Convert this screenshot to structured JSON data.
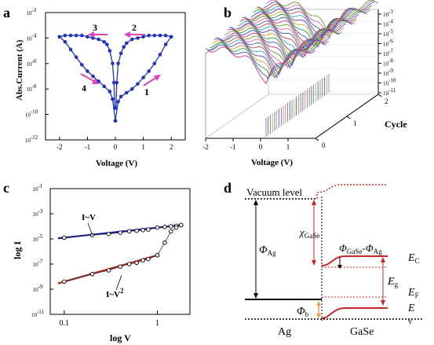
{
  "panels": {
    "a": {
      "letter": "a",
      "ylabel": "Abs.Current (A)",
      "xlabel": "Voltage (V)",
      "xticks": [
        "-2",
        "-1",
        "0",
        "1",
        "2"
      ],
      "yticks": [
        "10-2",
        "10-4",
        "10-6",
        "10-8",
        "10-10",
        "10-12"
      ],
      "sweep_labels": [
        "3",
        "2",
        "4",
        "1"
      ]
    },
    "b": {
      "letter": "b",
      "ylabel": "Abs.Current (A)",
      "xlabel": "Voltage (V)",
      "depth_label": "Cycle",
      "xticks": [
        "-2",
        "-1",
        "0",
        "1"
      ],
      "depth_ticks": [
        "0",
        "1",
        "2"
      ],
      "zticks": [
        "10-3",
        "10-4",
        "10-5",
        "10-6",
        "10-7",
        "10-8",
        "10-9",
        "10-10",
        "10-11"
      ]
    },
    "c": {
      "letter": "c",
      "ylabel": "log I",
      "xlabel": "log V",
      "xticks": [
        "0.1",
        "1"
      ],
      "yticks": [
        "10-1",
        "10-3",
        "10-5",
        "10-7",
        "10-9",
        "10-11"
      ],
      "fit_labels": [
        "I~V",
        "I~V2"
      ]
    },
    "d": {
      "letter": "d",
      "labels": {
        "vacuum": "Vacuum level",
        "phi_ag": "ΦAg",
        "chi": "χGaSe",
        "phi_diff": "ΦGaSe-ΦAg",
        "ec": "EC",
        "eg": "Eg",
        "ef": "EF",
        "ev": "E",
        "v": "v",
        "phi_b": "Φb",
        "ag": "Ag",
        "gase": "GaSe"
      }
    }
  },
  "chart_data": [
    {
      "panel": "a",
      "type": "line",
      "xlabel": "Voltage (V)",
      "ylabel": "Abs.Current (A)",
      "xlim": [
        -2.5,
        2.5
      ],
      "ylim_log10": [
        -12,
        -2
      ],
      "series": [
        {
          "x": [
            0,
            0.1,
            0.2,
            0.4,
            0.6,
            0.8,
            1.0,
            1.2,
            1.4,
            1.6,
            1.8,
            2.0
          ],
          "log10_y": [
            -10.5,
            -9.0,
            -8.6,
            -8.3,
            -8.0,
            -7.6,
            -7.1,
            -6.6,
            -6.0,
            -5.3,
            -4.5,
            -3.9
          ]
        },
        {
          "x": [
            2.0,
            1.8,
            1.6,
            1.4,
            1.2,
            1.0,
            0.8,
            0.6,
            0.4,
            0.3,
            0.2,
            0.1,
            0.05,
            0.02
          ],
          "log10_y": [
            -3.9,
            -3.8,
            -3.8,
            -3.8,
            -3.8,
            -3.9,
            -4.0,
            -4.1,
            -4.4,
            -4.7,
            -5.2,
            -6.0,
            -7.5,
            -9.5
          ]
        },
        {
          "x": [
            -0.02,
            -0.05,
            -0.1,
            -0.2,
            -0.3,
            -0.4,
            -0.6,
            -0.8,
            -1.0,
            -1.2,
            -1.4,
            -1.6,
            -1.8,
            -2.0
          ],
          "log10_y": [
            -9.5,
            -7.5,
            -6.0,
            -5.0,
            -4.5,
            -4.3,
            -4.1,
            -4.0,
            -3.9,
            -3.8,
            -3.8,
            -3.8,
            -3.8,
            -3.9
          ]
        },
        {
          "x": [
            -2.0,
            -1.8,
            -1.6,
            -1.4,
            -1.2,
            -1.0,
            -0.8,
            -0.6,
            -0.4,
            -0.2,
            -0.1,
            0
          ],
          "log10_y": [
            -3.9,
            -4.3,
            -4.9,
            -5.5,
            -6.1,
            -6.6,
            -7.0,
            -7.4,
            -7.8,
            -8.2,
            -8.8,
            -10.5
          ]
        }
      ]
    },
    {
      "panel": "b",
      "type": "line",
      "xlabel": "Voltage (V)",
      "ylabel": "Abs.Current (A)",
      "xlim": [
        -2,
        2
      ],
      "zlim_log10": [
        -11,
        -3
      ],
      "depth_label": "Cycle",
      "cycles": 30
    },
    {
      "panel": "c",
      "type": "scatter",
      "xlabel": "log V",
      "ylabel": "log I",
      "xlim_log10": [
        -1.15,
        0.35
      ],
      "ylim_log10": [
        -11,
        -1
      ],
      "series": [
        {
          "name": "I~V",
          "x": [
            0.1,
            0.2,
            0.3,
            0.4,
            0.5,
            0.6,
            0.7,
            0.8,
            1.0,
            1.2,
            1.4,
            1.6,
            1.8
          ],
          "log10_y": [
            -4.9,
            -4.7,
            -4.6,
            -4.5,
            -4.4,
            -4.35,
            -4.3,
            -4.25,
            -4.1,
            -4.05,
            -4.0,
            -3.95,
            -3.9
          ]
        },
        {
          "name": "I~V2",
          "x": [
            0.1,
            0.2,
            0.3,
            0.4,
            0.5,
            0.6,
            0.7,
            0.8,
            1.0,
            1.2,
            1.4,
            1.6,
            1.8
          ],
          "log10_y": [
            -8.4,
            -7.8,
            -7.5,
            -7.2,
            -7.0,
            -6.9,
            -6.7,
            -6.6,
            -6.3,
            -5.3,
            -4.4,
            -4.1,
            -3.9
          ]
        }
      ],
      "colors": {
        "i_v_fit": "#1a1aa8",
        "i_v2_fit": "#b8231a"
      }
    }
  ],
  "colors": {
    "panel_a_line": "#2233bb",
    "arrow": "#dd44bb",
    "red": "#c82828",
    "orange": "#e8a040"
  }
}
